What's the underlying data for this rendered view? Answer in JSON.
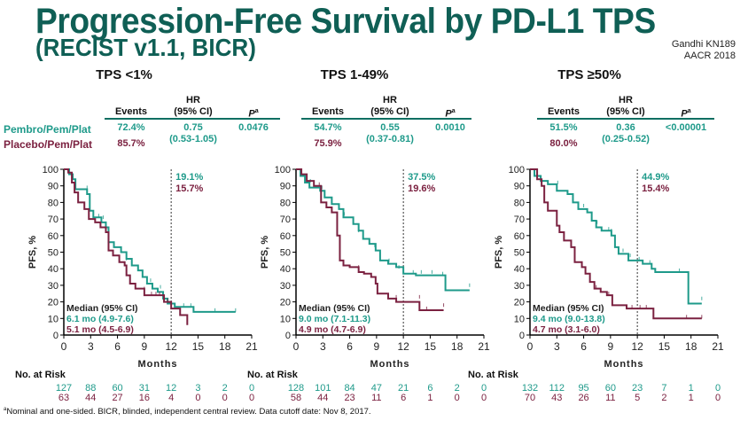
{
  "title": "Progression-Free Survival by PD-L1 TPS",
  "subtitle": "(RECIST v1.1, BICR)",
  "citation": {
    "line1": "Gandhi KN189",
    "line2": "AACR 2018"
  },
  "arms": {
    "pembro": "Pembro/Pem/Plat",
    "placebo": "Placebo/Pem/Plat"
  },
  "colors": {
    "pembro": "#1e9a8a",
    "placebo": "#7b2140",
    "title": "#0f5f55"
  },
  "table_headers": {
    "events": "Events",
    "hr_line1": "HR",
    "hr_line2": "(95%  CI)",
    "p": "P",
    "p_sup": "a"
  },
  "footnote": "aNominal and one-sided. BICR, blinded, independent central review. Data cutoff date: Nov 8, 2017.",
  "footnote_sup": "a",
  "footnote_text": "Nominal  and one-sided. BICR, blinded, independent  central review. Data cutoff date: Nov 8, 2017.",
  "chart_data": [
    {
      "type": "line",
      "title": "TPS <1%",
      "xlabel": "Months",
      "ylabel": "PFS, %",
      "xlim": [
        0,
        21
      ],
      "ylim": [
        0,
        100
      ],
      "xticks": [
        0,
        3,
        6,
        9,
        12,
        15,
        18,
        21
      ],
      "yticks": [
        0,
        10,
        20,
        30,
        40,
        50,
        60,
        70,
        80,
        90,
        100
      ],
      "landmark_month": 12,
      "landmark_labels": {
        "pembro": "19.1%",
        "placebo": "15.7%"
      },
      "stats": {
        "pembro_events": "72.4%",
        "placebo_events": "85.7%",
        "hr": "0.75",
        "hr_ci": "(0.53-1.05)",
        "p": "0.0476"
      },
      "median": {
        "header": "Median  (95%  CI)",
        "pembro": "6.1 mo (4.9-7.6)",
        "placebo": "5.1 mo (4.5-6.9)"
      },
      "at_risk_label": "No. at Risk",
      "at_risk": {
        "pembro": [
          127,
          88,
          60,
          31,
          12,
          3,
          2,
          0
        ],
        "placebo": [
          63,
          44,
          27,
          16,
          4,
          0,
          0,
          0
        ]
      },
      "series": [
        {
          "name": "Pembro/Pem/Plat",
          "color": "#1e9a8a",
          "x": [
            0,
            0.6,
            1.0,
            1.3,
            2.6,
            2.9,
            3.3,
            4.2,
            4.7,
            5.0,
            5.6,
            6.4,
            7.0,
            7.6,
            8.3,
            8.8,
            9.3,
            9.9,
            10.5,
            11.1,
            11.6,
            12.4,
            14.5,
            19.2
          ],
          "y": [
            100,
            97,
            94,
            88,
            85,
            75,
            71,
            68,
            65,
            56,
            53,
            50,
            46,
            42,
            39,
            35,
            31,
            28,
            26,
            22,
            19,
            17,
            14,
            14
          ],
          "censor": [
            [
              2.6,
              88
            ],
            [
              3.9,
              71
            ],
            [
              4.4,
              70
            ],
            [
              7.0,
              45
            ],
            [
              9.7,
              32
            ],
            [
              10.8,
              28
            ],
            [
              13.4,
              17
            ],
            [
              14.2,
              17
            ],
            [
              16.9,
              14
            ],
            [
              19.2,
              14
            ]
          ]
        },
        {
          "name": "Placebo/Pem/Plat",
          "color": "#7b2140",
          "x": [
            0,
            0.5,
            0.9,
            1.2,
            1.6,
            2.3,
            2.8,
            3.5,
            4.1,
            4.7,
            5.0,
            5.5,
            6.2,
            6.8,
            7.0,
            7.4,
            8.0,
            9.0,
            10.7,
            11.2,
            12.0,
            13.0,
            13.8
          ],
          "y": [
            100,
            98,
            92,
            86,
            80,
            76,
            70,
            68,
            65,
            62,
            51,
            48,
            44,
            42,
            36,
            31,
            28,
            24,
            24,
            20,
            16,
            12,
            6
          ],
          "censor": [
            [
              9.0,
              27
            ],
            [
              9.8,
              24
            ],
            [
              10.3,
              24
            ],
            [
              10.7,
              24
            ],
            [
              11.6,
              20
            ]
          ]
        }
      ]
    },
    {
      "type": "line",
      "title": "TPS 1-49%",
      "xlabel": "Months",
      "ylabel": "PFS, %",
      "xlim": [
        0,
        21
      ],
      "ylim": [
        0,
        100
      ],
      "xticks": [
        0,
        3,
        6,
        9,
        12,
        15,
        18,
        21
      ],
      "yticks": [
        0,
        10,
        20,
        30,
        40,
        50,
        60,
        70,
        80,
        90,
        100
      ],
      "landmark_month": 12,
      "landmark_labels": {
        "pembro": "37.5%",
        "placebo": "19.6%"
      },
      "stats": {
        "pembro_events": "54.7%",
        "placebo_events": "75.9%",
        "hr": "0.55",
        "hr_ci": "(0.37-0.81)",
        "p": "0.0010"
      },
      "median": {
        "header": "Median  (95%  CI)",
        "pembro": "9.0 mo (7.1-11.3)",
        "placebo": "4.9 mo (4.7-6.9)"
      },
      "at_risk_label": "No. at Risk",
      "at_risk": {
        "pembro": [
          128,
          101,
          84,
          47,
          21,
          6,
          2,
          0
        ],
        "placebo": [
          58,
          44,
          23,
          11,
          6,
          1,
          0,
          0
        ]
      },
      "series": [
        {
          "name": "Pembro/Pem/Plat",
          "color": "#1e9a8a",
          "x": [
            0,
            0.5,
            1.0,
            1.5,
            2.7,
            3.2,
            4.0,
            4.8,
            5.3,
            6.4,
            7.0,
            7.5,
            8.2,
            8.9,
            9.4,
            10.3,
            11.2,
            12.0,
            13.4,
            16.7,
            19.4
          ],
          "y": [
            100,
            96,
            92,
            89,
            87,
            83,
            79,
            76,
            71,
            67,
            63,
            58,
            55,
            51,
            45,
            43,
            41,
            37,
            36,
            27,
            27
          ],
          "censor": [
            [
              1.6,
              92
            ],
            [
              2.9,
              88
            ],
            [
              5.4,
              72
            ],
            [
              7.0,
              62
            ],
            [
              8.8,
              53
            ],
            [
              10.4,
              44
            ],
            [
              11.5,
              40
            ],
            [
              13.1,
              37
            ],
            [
              14.0,
              37
            ],
            [
              15.2,
              37
            ],
            [
              16.4,
              36
            ],
            [
              19.4,
              29
            ]
          ]
        },
        {
          "name": "Placebo/Pem/Plat",
          "color": "#7b2140",
          "x": [
            0,
            0.6,
            1.2,
            2.0,
            2.8,
            3.4,
            4.0,
            4.6,
            4.9,
            5.3,
            6.0,
            7.0,
            7.6,
            8.4,
            8.9,
            9.1,
            10.3,
            11.2,
            13.8,
            16.5
          ],
          "y": [
            100,
            97,
            93,
            90,
            80,
            77,
            74,
            60,
            45,
            42,
            41,
            38,
            37,
            35,
            31,
            25,
            22,
            20,
            15,
            15
          ],
          "censor": [
            [
              2.6,
              90
            ],
            [
              7.0,
              40
            ],
            [
              11.2,
              22
            ],
            [
              13.8,
              22
            ],
            [
              14.6,
              15
            ],
            [
              16.5,
              17
            ]
          ]
        }
      ]
    },
    {
      "type": "line",
      "title": "TPS ≥50%",
      "xlabel": "Months",
      "ylabel": "PFS, %",
      "xlim": [
        0,
        21
      ],
      "ylim": [
        0,
        100
      ],
      "xticks": [
        0,
        3,
        6,
        9,
        12,
        15,
        18,
        21
      ],
      "yticks": [
        0,
        10,
        20,
        30,
        40,
        50,
        60,
        70,
        80,
        90,
        100
      ],
      "landmark_month": 12,
      "landmark_labels": {
        "pembro": "44.9%",
        "placebo": "15.4%"
      },
      "stats": {
        "pembro_events": "51.5%",
        "placebo_events": "80.0%",
        "hr": "0.36",
        "hr_ci": "(0.25-0.52)",
        "p": "<0.00001"
      },
      "median": {
        "header": "Median  (95%  CI)",
        "pembro": "9.4 mo (9.0-13.8)",
        "placebo": "4.7 mo (3.1-6.0)"
      },
      "at_risk_label": "No. at Risk",
      "at_risk": {
        "pembro": [
          132,
          112,
          95,
          60,
          23,
          7,
          1,
          0
        ],
        "placebo": [
          70,
          43,
          26,
          11,
          5,
          2,
          1,
          0
        ]
      },
      "series": [
        {
          "name": "Pembro/Pem/Plat",
          "color": "#1e9a8a",
          "x": [
            0,
            0.5,
            1.2,
            2.0,
            3.0,
            4.2,
            4.8,
            5.4,
            6.4,
            6.9,
            7.4,
            8.0,
            9.1,
            9.5,
            9.9,
            11.0,
            12.6,
            13.6,
            14.0,
            17.7,
            19.2
          ],
          "y": [
            100,
            96,
            93,
            91,
            87,
            85,
            80,
            76,
            74,
            69,
            65,
            63,
            60,
            53,
            49,
            45,
            43,
            40,
            38,
            19,
            19
          ],
          "censor": [
            [
              3.1,
              91
            ],
            [
              6.0,
              77
            ],
            [
              7.5,
              67
            ],
            [
              8.8,
              63
            ],
            [
              9.1,
              62
            ],
            [
              10.4,
              50
            ],
            [
              11.2,
              47
            ],
            [
              12.2,
              45
            ],
            [
              13.4,
              43
            ],
            [
              16.7,
              38
            ],
            [
              19.2,
              21
            ]
          ]
        },
        {
          "name": "Placebo/Pem/Plat",
          "color": "#7b2140",
          "x": [
            0,
            0.8,
            1.3,
            1.6,
            2.0,
            3.0,
            3.3,
            3.8,
            4.6,
            5.0,
            5.8,
            6.2,
            6.7,
            7.2,
            7.9,
            8.6,
            9.2,
            10.8,
            13.8,
            19.2
          ],
          "y": [
            100,
            94,
            90,
            80,
            75,
            66,
            62,
            57,
            53,
            44,
            41,
            37,
            32,
            28,
            26,
            24,
            18,
            16,
            10,
            10
          ],
          "censor": [
            [
              1.3,
              91
            ],
            [
              7.4,
              28
            ],
            [
              8.8,
              24
            ],
            [
              11.4,
              16
            ],
            [
              12.3,
              16
            ],
            [
              13.0,
              16
            ],
            [
              17.5,
              10
            ],
            [
              19.2,
              10
            ]
          ]
        }
      ]
    }
  ]
}
